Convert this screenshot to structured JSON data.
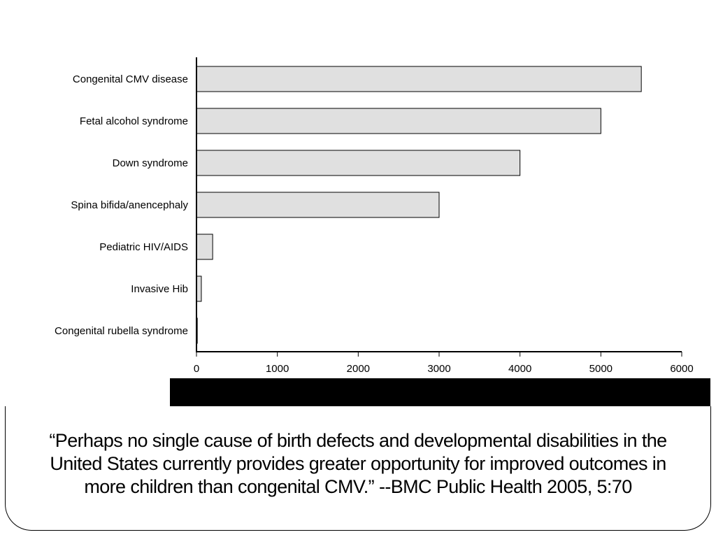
{
  "chart_data": {
    "type": "bar",
    "orientation": "horizontal",
    "categories": [
      "Congenital CMV disease",
      "Fetal alcohol syndrome",
      "Down syndrome",
      "Spina bifida/anencephaly",
      "Pediatric HIV/AIDS",
      "Invasive Hib",
      "Congenital rubella syndrome"
    ],
    "values": [
      5500,
      5000,
      4000,
      3000,
      200,
      60,
      10
    ],
    "xlim": [
      0,
      6000
    ],
    "xticks": [
      "0",
      "1000",
      "2000",
      "3000",
      "4000",
      "5000",
      "6000"
    ],
    "bar_color": "#e0e0e0",
    "grid": false
  },
  "quote": {
    "text": "“Perhaps no single cause of birth defects and developmental disabilities in the United States currently provides greater opportunity for improved outcomes in more children than congenital CMV.”  --BMC Public Health 2005, 5:70"
  }
}
